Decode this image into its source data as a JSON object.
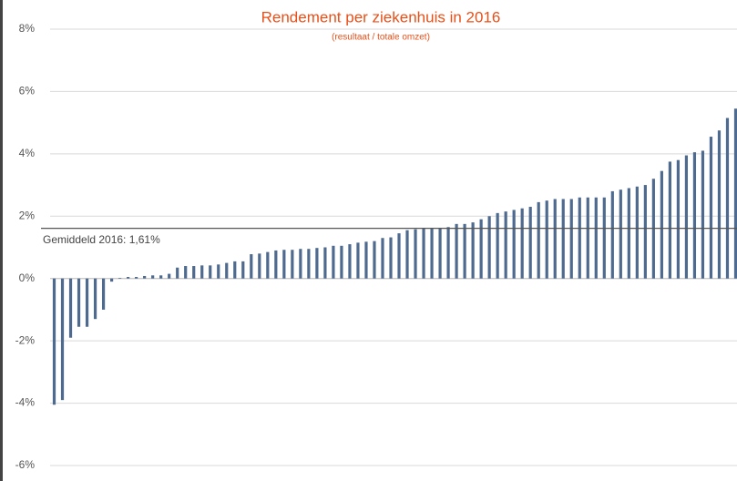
{
  "chart_data": {
    "type": "bar",
    "title": "Rendement per ziekenhuis in 2016",
    "subtitle": "(resultaat / totale omzet)",
    "categories": [
      null,
      null,
      null,
      null,
      null,
      null,
      null,
      null,
      null,
      null,
      null,
      null,
      null,
      null,
      null,
      null,
      null,
      null,
      null,
      null,
      null,
      null,
      null,
      null,
      null,
      null,
      null,
      null,
      null,
      null,
      null,
      null,
      null,
      null,
      null,
      null,
      null,
      null,
      null,
      null,
      null,
      null,
      null,
      null,
      null,
      null,
      null,
      null,
      null,
      null,
      null,
      null,
      null,
      null,
      null,
      null,
      null,
      null,
      null,
      null,
      null,
      null,
      null,
      null,
      null,
      null,
      null,
      null,
      null,
      null,
      null,
      null,
      null,
      null,
      null,
      null,
      null,
      null,
      null,
      null,
      null,
      null,
      null,
      null
    ],
    "values": [
      -4.05,
      -3.9,
      -1.9,
      -1.55,
      -1.55,
      -1.3,
      -1.0,
      -0.1,
      0.02,
      0.05,
      0.05,
      0.08,
      0.1,
      0.1,
      0.15,
      0.35,
      0.4,
      0.4,
      0.42,
      0.42,
      0.45,
      0.5,
      0.55,
      0.55,
      0.78,
      0.8,
      0.85,
      0.9,
      0.92,
      0.92,
      0.95,
      0.95,
      0.98,
      1.0,
      1.05,
      1.05,
      1.1,
      1.15,
      1.18,
      1.2,
      1.3,
      1.32,
      1.45,
      1.55,
      1.58,
      1.6,
      1.6,
      1.62,
      1.65,
      1.75,
      1.75,
      1.8,
      1.9,
      2.0,
      2.1,
      2.15,
      2.2,
      2.25,
      2.3,
      2.45,
      2.5,
      2.55,
      2.55,
      2.55,
      2.6,
      2.6,
      2.6,
      2.6,
      2.8,
      2.85,
      2.9,
      2.95,
      3.0,
      3.2,
      3.45,
      3.75,
      3.8,
      3.95,
      4.05,
      4.1,
      4.55,
      4.75,
      5.15,
      5.45
    ],
    "color": "#4f6a8f",
    "ylim": [
      -6,
      8
    ],
    "yticks": [
      {
        "value": -6,
        "label": "-6%"
      },
      {
        "value": -4,
        "label": "-4%"
      },
      {
        "value": -2,
        "label": "-2%"
      },
      {
        "value": 0,
        "label": "0%"
      },
      {
        "value": 2,
        "label": "2%"
      },
      {
        "value": 4,
        "label": "4%"
      },
      {
        "value": 6,
        "label": "6%"
      },
      {
        "value": 8,
        "label": "8%"
      }
    ],
    "grid": true,
    "mean_line": {
      "value": 1.61,
      "label": "Gemiddeld 2016: 1,61%"
    }
  }
}
